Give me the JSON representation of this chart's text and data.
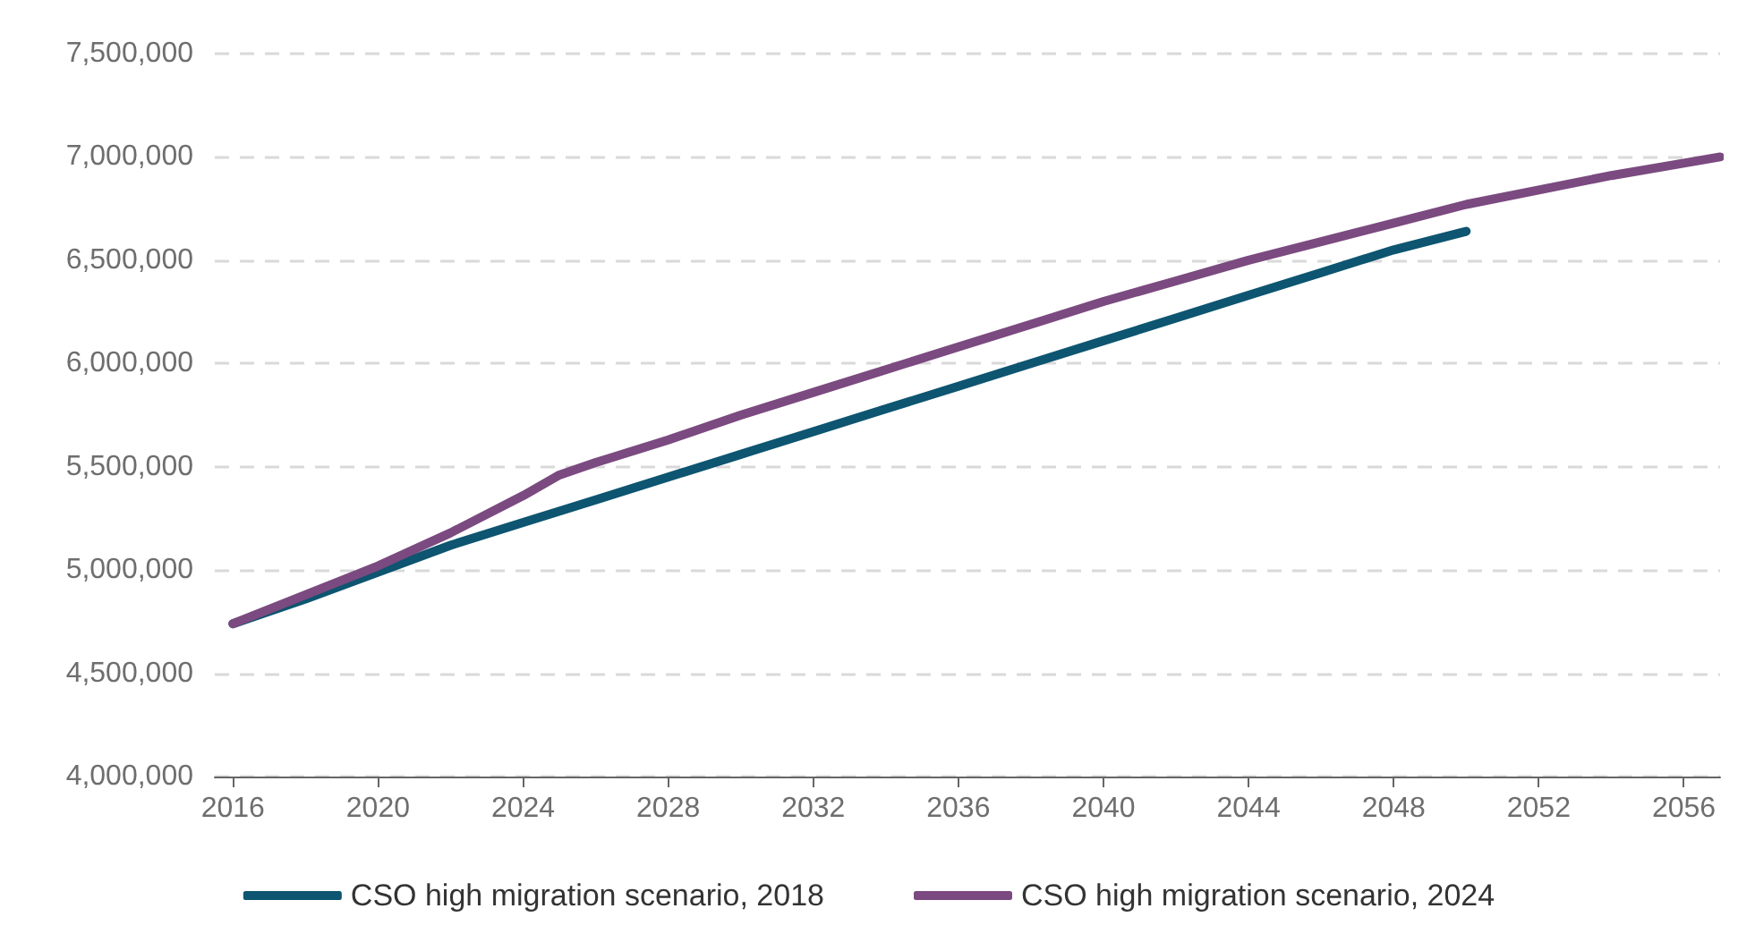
{
  "chart_data": {
    "type": "line",
    "x": [
      2016,
      2018,
      2020,
      2022,
      2024,
      2026,
      2028,
      2030,
      2032,
      2034,
      2036,
      2038,
      2040,
      2042,
      2044,
      2046,
      2048,
      2050
    ],
    "series": [
      {
        "name": "CSO high migration scenario, 2018",
        "color": "#0d5570",
        "values": [
          4740000,
          4860000,
          4990000,
          5120000,
          5230000,
          5340000,
          5450000,
          5560000,
          5670000,
          5780000,
          5890000,
          6000000,
          6110000,
          6220000,
          6330000,
          6440000,
          6550000,
          6640000
        ]
      },
      {
        "name": "CSO high migration scenario, 2024",
        "color": "#7b4a80",
        "x": [
          2016,
          2018,
          2020,
          2022,
          2024,
          2025,
          2026,
          2028,
          2030,
          2032,
          2034,
          2036,
          2038,
          2040,
          2042,
          2044,
          2046,
          2048,
          2050,
          2052,
          2054,
          2056,
          2057
        ],
        "values": [
          4740000,
          4880000,
          5020000,
          5180000,
          5360000,
          5460000,
          5520000,
          5630000,
          5750000,
          5860000,
          5970000,
          6080000,
          6190000,
          6300000,
          6400000,
          6500000,
          6590000,
          6680000,
          6770000,
          6840000,
          6910000,
          6970000,
          7000000
        ]
      }
    ],
    "xlim": [
      2015.5,
      2057
    ],
    "xticks": [
      2016,
      2020,
      2024,
      2028,
      2032,
      2036,
      2040,
      2044,
      2048,
      2052,
      2056
    ],
    "ylim": [
      4000000,
      7500000
    ],
    "yticks": [
      {
        "value": 4000000,
        "label": "4,000,000"
      },
      {
        "value": 4500000,
        "label": "4,500,000"
      },
      {
        "value": 5000000,
        "label": "5,000,000"
      },
      {
        "value": 5500000,
        "label": "5,500,000"
      },
      {
        "value": 6000000,
        "label": "6,000,000"
      },
      {
        "value": 6500000,
        "label": "6,500,000"
      },
      {
        "value": 7000000,
        "label": "7,000,000"
      },
      {
        "value": 7500000,
        "label": "7,500,000"
      }
    ],
    "grid": "y",
    "legend": "bottom",
    "marker": "none",
    "line_style": "solid"
  }
}
